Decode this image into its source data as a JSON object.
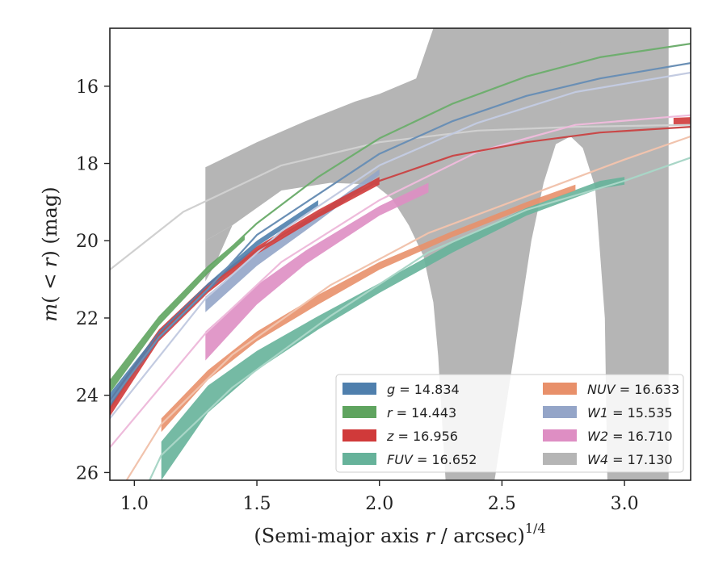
{
  "chart_data": {
    "type": "area",
    "title": "",
    "xlabel_main": "(Semi-major axis ",
    "xlabel_var": "r",
    "xlabel_rest": " / arcsec)",
    "xlabel_exp": "1/4",
    "ylabel_m": "m",
    "ylabel_paren": "(",
    "ylabel_lt": " < ",
    "ylabel_r": "r",
    "ylabel_close": ") (mag)",
    "xlim": [
      0.9,
      3.27
    ],
    "ylim": [
      26.2,
      14.5
    ],
    "y_inverted": true,
    "xticks": [
      1.0,
      1.5,
      2.0,
      2.5,
      3.0
    ],
    "xtick_labels": [
      "1.0",
      "1.5",
      "2.0",
      "2.5",
      "3.0"
    ],
    "yticks": [
      16,
      18,
      20,
      22,
      24,
      26
    ],
    "ytick_labels": [
      "16",
      "18",
      "20",
      "22",
      "24",
      "26"
    ],
    "grid": false,
    "legend_placement": "bottom-right",
    "legend_columns": 2,
    "series": [
      {
        "key": "W4",
        "name_var": "W4",
        "name_value": " = 17.130",
        "color": "#b5b5b5",
        "model_color": "#d0d0d0",
        "model": {
          "x": [
            0.9,
            1.2,
            1.6,
            2.0,
            2.4,
            2.8,
            3.27
          ],
          "y": [
            20.75,
            19.25,
            18.05,
            17.45,
            17.15,
            17.05,
            17.0
          ]
        },
        "polygons": [
          [
            [
              1.29,
              18.1
            ],
            [
              1.5,
              17.45
            ],
            [
              1.7,
              16.9
            ],
            [
              1.9,
              16.4
            ],
            [
              2.0,
              16.2
            ],
            [
              2.15,
              15.8
            ],
            [
              2.22,
              14.5
            ],
            [
              3.18,
              14.5
            ],
            [
              3.18,
              26.2
            ],
            [
              2.93,
              26.2
            ],
            [
              2.92,
              22.0
            ],
            [
              2.88,
              18.6
            ],
            [
              2.83,
              17.6
            ],
            [
              2.78,
              17.3
            ],
            [
              2.72,
              17.5
            ],
            [
              2.67,
              18.5
            ],
            [
              2.62,
              20.0
            ],
            [
              2.56,
              22.5
            ],
            [
              2.47,
              26.2
            ],
            [
              2.27,
              26.2
            ],
            [
              2.24,
              23.0
            ],
            [
              2.22,
              21.6
            ],
            [
              2.18,
              20.4
            ],
            [
              2.12,
              19.6
            ],
            [
              2.05,
              18.9
            ],
            [
              1.98,
              18.55
            ],
            [
              1.8,
              18.5
            ],
            [
              1.6,
              18.7
            ],
            [
              1.4,
              19.6
            ],
            [
              1.29,
              20.0
            ]
          ],
          [
            [
              1.29,
              20.0
            ],
            [
              1.4,
              19.6
            ],
            [
              1.33,
              20.6
            ],
            [
              1.29,
              21.05
            ]
          ],
          [
            [
              2.59,
              14.5
            ],
            [
              2.78,
              14.5
            ],
            [
              2.76,
              14.85
            ],
            [
              2.64,
              14.88
            ],
            [
              2.6,
              14.75
            ]
          ]
        ]
      },
      {
        "key": "FUV",
        "name_var": "FUV",
        "name_value": " = 16.652",
        "color": "#66b29a",
        "model_color": "#a9d6c7",
        "model": {
          "x": [
            0.9,
            1.11,
            1.4,
            1.8,
            2.2,
            2.6,
            3.0,
            3.27
          ],
          "y": [
            28.4,
            25.55,
            23.8,
            21.95,
            20.3,
            19.2,
            18.45,
            17.85
          ]
        },
        "polygons": [
          [
            [
              1.11,
              25.2
            ],
            [
              1.3,
              23.75
            ],
            [
              1.5,
              22.85
            ],
            [
              1.75,
              21.95
            ],
            [
              2.0,
              21.1
            ],
            [
              2.3,
              20.05
            ],
            [
              2.6,
              19.15
            ],
            [
              2.9,
              18.45
            ],
            [
              3.0,
              18.35
            ],
            [
              3.0,
              18.55
            ],
            [
              2.9,
              18.65
            ],
            [
              2.6,
              19.35
            ],
            [
              2.3,
              20.3
            ],
            [
              2.0,
              21.35
            ],
            [
              1.75,
              22.3
            ],
            [
              1.5,
              23.35
            ],
            [
              1.3,
              24.45
            ],
            [
              1.11,
              26.2
            ]
          ]
        ]
      },
      {
        "key": "NUV",
        "name_var": "NUV",
        "name_value": " = 16.633",
        "color": "#e8906a",
        "model_color": "#f1c3ad",
        "model": {
          "x": [
            0.9,
            1.11,
            1.4,
            1.8,
            2.2,
            2.6,
            3.0,
            3.27
          ],
          "y": [
            26.9,
            24.75,
            22.95,
            21.15,
            19.8,
            18.85,
            17.9,
            17.3
          ]
        },
        "polygons": [
          [
            [
              1.11,
              24.6
            ],
            [
              1.3,
              23.35
            ],
            [
              1.5,
              22.35
            ],
            [
              1.75,
              21.4
            ],
            [
              2.0,
              20.55
            ],
            [
              2.3,
              19.75
            ],
            [
              2.6,
              19.0
            ],
            [
              2.8,
              18.55
            ],
            [
              2.8,
              18.7
            ],
            [
              2.6,
              19.15
            ],
            [
              2.3,
              19.9
            ],
            [
              2.0,
              20.75
            ],
            [
              1.75,
              21.65
            ],
            [
              1.5,
              22.6
            ],
            [
              1.3,
              23.6
            ],
            [
              1.11,
              24.95
            ]
          ]
        ]
      },
      {
        "key": "W2",
        "name_var": "W2",
        "name_value": " = 16.710",
        "color": "#de8ec3",
        "model_color": "#eebbdb",
        "model": {
          "x": [
            0.9,
            1.29,
            1.6,
            2.0,
            2.4,
            2.8,
            3.27
          ],
          "y": [
            25.35,
            22.4,
            20.55,
            18.95,
            17.7,
            17.0,
            16.75
          ]
        },
        "polygons": [
          [
            [
              1.29,
              22.35
            ],
            [
              1.5,
              21.15
            ],
            [
              1.7,
              20.25
            ],
            [
              2.0,
              19.1
            ],
            [
              2.2,
              18.5
            ],
            [
              2.2,
              18.75
            ],
            [
              2.0,
              19.35
            ],
            [
              1.7,
              20.6
            ],
            [
              1.5,
              21.65
            ],
            [
              1.29,
              23.1
            ]
          ]
        ]
      },
      {
        "key": "W1",
        "name_var": "W1",
        "name_value": " = 15.535",
        "color": "#94a5c8",
        "model_color": "#c3cbe1",
        "model": {
          "x": [
            0.9,
            1.29,
            1.6,
            2.0,
            2.4,
            2.8,
            3.27
          ],
          "y": [
            24.6,
            21.5,
            19.75,
            18.05,
            16.95,
            16.15,
            15.65
          ]
        },
        "polygons": [
          [
            [
              1.29,
              21.45
            ],
            [
              1.5,
              20.35
            ],
            [
              1.75,
              19.3
            ],
            [
              2.0,
              18.15
            ],
            [
              2.0,
              18.3
            ],
            [
              1.75,
              19.5
            ],
            [
              1.5,
              20.65
            ],
            [
              1.29,
              21.85
            ]
          ]
        ]
      },
      {
        "key": "z",
        "name_var": "z",
        "name_value": " = 16.956",
        "color": "#d03a3a",
        "model_color": "#c94848",
        "model": {
          "x": [
            0.9,
            1.1,
            1.3,
            1.5,
            1.75,
            2.0,
            2.3,
            2.6,
            2.9,
            3.27
          ],
          "y": [
            24.35,
            22.45,
            21.2,
            20.25,
            19.3,
            18.45,
            17.8,
            17.45,
            17.2,
            17.05
          ]
        },
        "polygons": [
          [
            [
              0.9,
              24.1
            ],
            [
              1.1,
              22.3
            ],
            [
              1.3,
              21.1
            ],
            [
              1.5,
              20.15
            ],
            [
              1.75,
              19.2
            ],
            [
              2.0,
              18.35
            ],
            [
              2.0,
              18.55
            ],
            [
              1.75,
              19.4
            ],
            [
              1.5,
              20.35
            ],
            [
              1.3,
              21.35
            ],
            [
              1.1,
              22.6
            ],
            [
              0.9,
              24.55
            ]
          ],
          [
            [
              3.2,
              16.82
            ],
            [
              3.27,
              16.8
            ],
            [
              3.27,
              17.0
            ],
            [
              3.2,
              17.02
            ]
          ]
        ]
      },
      {
        "key": "g",
        "name_var": "g",
        "name_value": " = 14.834",
        "color": "#4f7fad",
        "model_color": "#6a8fb5",
        "model": {
          "x": [
            0.9,
            1.1,
            1.3,
            1.5,
            1.75,
            2.0,
            2.3,
            2.6,
            2.9,
            3.27
          ],
          "y": [
            24.2,
            22.5,
            21.25,
            19.85,
            18.8,
            17.75,
            16.9,
            16.25,
            15.8,
            15.4
          ]
        },
        "polygons": [
          [
            [
              0.9,
              23.95
            ],
            [
              1.1,
              22.35
            ],
            [
              1.3,
              21.1
            ],
            [
              1.5,
              20.0
            ],
            [
              1.75,
              18.95
            ],
            [
              1.75,
              19.1
            ],
            [
              1.5,
              20.15
            ],
            [
              1.3,
              21.3
            ],
            [
              1.1,
              22.55
            ],
            [
              0.9,
              24.35
            ]
          ]
        ]
      },
      {
        "key": "r",
        "name_var": "r",
        "name_value": " = 14.443",
        "color": "#5fa45f",
        "model_color": "#6fae6f",
        "model": {
          "x": [
            0.9,
            1.1,
            1.3,
            1.5,
            1.75,
            2.0,
            2.3,
            2.6,
            2.9,
            3.27
          ],
          "y": [
            23.75,
            22.05,
            20.75,
            19.55,
            18.35,
            17.35,
            16.45,
            15.75,
            15.25,
            14.9
          ]
        },
        "polygons": [
          [
            [
              0.9,
              23.6
            ],
            [
              1.1,
              21.95
            ],
            [
              1.3,
              20.65
            ],
            [
              1.45,
              19.85
            ],
            [
              1.45,
              19.98
            ],
            [
              1.3,
              20.85
            ],
            [
              1.1,
              22.2
            ],
            [
              0.9,
              23.95
            ]
          ]
        ]
      }
    ],
    "legend_order": [
      "g",
      "r",
      "z",
      "FUV",
      "NUV",
      "W1",
      "W2",
      "W4"
    ]
  }
}
